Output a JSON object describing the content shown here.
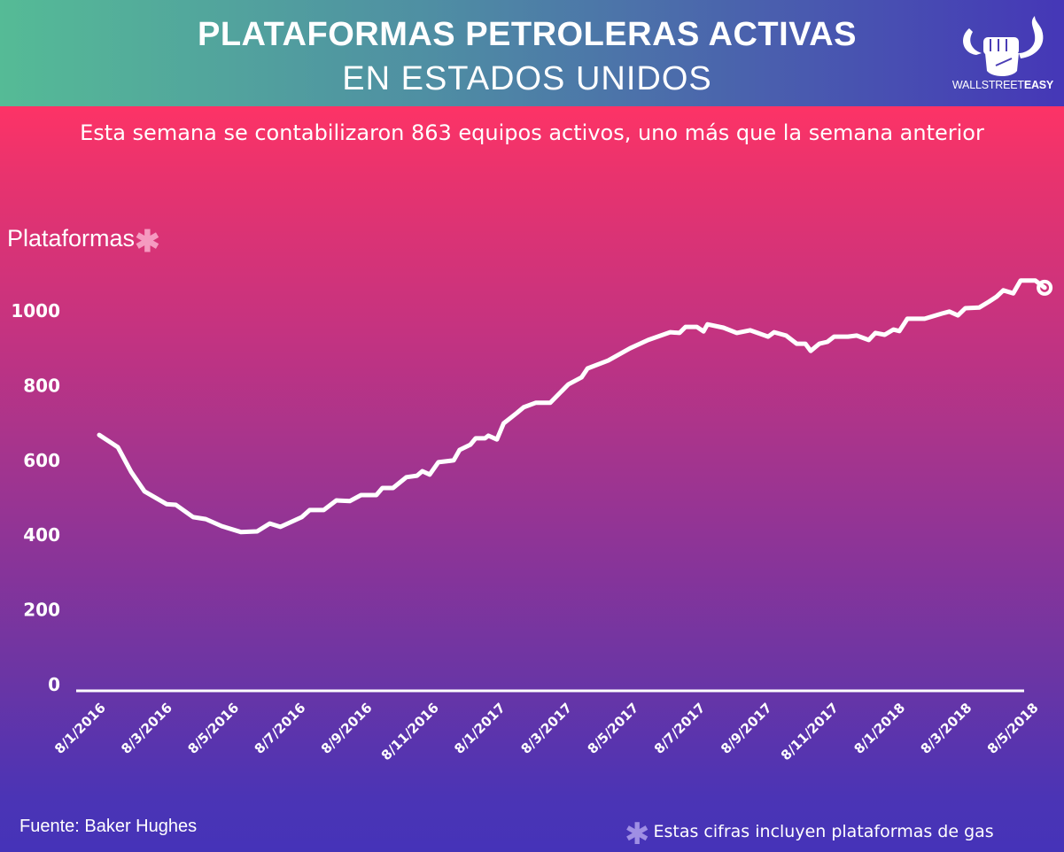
{
  "header": {
    "title_line1": "PLATAFORMAS PETROLERAS ACTIVAS",
    "title_line2": "EN ESTADOS UNIDOS",
    "logo_text_light": "WALLSTREET",
    "logo_text_bold": "EASY",
    "logo_icon": "bull-horns-fist-icon"
  },
  "subtitle": "Esta semana se contabilizaron 863 equipos activos, uno más que la semana anterior",
  "footer": {
    "source": "Fuente: Baker Hughes",
    "note_marker": "✱",
    "note": "Estas cifras incluyen plataformas de gas"
  },
  "colors": {
    "header_gradient_start": "#55bb96",
    "header_gradient_end": "#4537b7",
    "body_gradient_top": "#fd3366",
    "body_gradient_bottom": "#4533b8",
    "line": "#ffffff",
    "asterisk_pink": "#f59ac0",
    "asterisk_lavender": "#9f8fe4"
  },
  "chart_data": {
    "type": "line",
    "title": "PLATAFORMAS PETROLERAS ACTIVAS EN ESTADOS UNIDOS",
    "ylabel": "Plataformas",
    "ylabel_marker": "✱",
    "xlabel": "",
    "ylim": [
      0,
      1000
    ],
    "yticks": [
      0,
      200,
      400,
      600,
      800,
      1000
    ],
    "xticks": [
      "8/1/2016",
      "8/3/2016",
      "8/5/2016",
      "8/7/2016",
      "8/9/2016",
      "8/11/2016",
      "8/1/2017",
      "8/3/2017",
      "8/5/2017",
      "8/7/2017",
      "8/9/2017",
      "8/11/2017",
      "8/1/2018",
      "8/3/2018",
      "8/5/2018"
    ],
    "grid": false,
    "legend": "none",
    "end_marker": "hollow-circle",
    "series": [
      {
        "name": "Plataformas",
        "x_tick_index": [
          0.0,
          0.28,
          0.48,
          0.68,
          1.01,
          1.15,
          1.41,
          1.6,
          1.84,
          2.13,
          2.37,
          2.56,
          2.72,
          3.04,
          3.16,
          3.37,
          3.56,
          3.76,
          3.93,
          4.16,
          4.25,
          4.41,
          4.61,
          4.77,
          4.85,
          4.96,
          5.09,
          5.32,
          5.41,
          5.57,
          5.65,
          5.79,
          5.84,
          5.97,
          6.07,
          6.27,
          6.37,
          6.55,
          6.77,
          7.04,
          7.24,
          7.33,
          7.64,
          7.97,
          8.24,
          8.57,
          8.71,
          8.8,
          8.97,
          9.07,
          9.13,
          9.37,
          9.57,
          9.77,
          10.04,
          10.13,
          10.31,
          10.47,
          10.6,
          10.68,
          10.81,
          10.93,
          11.03,
          11.24,
          11.37,
          11.55,
          11.65,
          11.79,
          11.92,
          12.01,
          12.13,
          12.39,
          12.65,
          12.76,
          12.89,
          13.0,
          13.21,
          13.35,
          13.47,
          13.57,
          13.72,
          13.83,
          14.05,
          14.19
        ],
        "values": [
          668,
          635,
          569,
          517,
          483,
          481,
          448,
          443,
          424,
          408,
          410,
          431,
          422,
          448,
          467,
          467,
          493,
          491,
          507,
          507,
          526,
          526,
          555,
          559,
          571,
          562,
          595,
          600,
          628,
          642,
          659,
          659,
          666,
          656,
          699,
          727,
          742,
          754,
          754,
          803,
          822,
          846,
          867,
          900,
          922,
          943,
          941,
          957,
          957,
          945,
          964,
          955,
          941,
          948,
          931,
          943,
          934,
          912,
          912,
          893,
          912,
          917,
          931,
          931,
          934,
          922,
          941,
          936,
          950,
          946,
          979,
          979,
          993,
          998,
          988,
          1007,
          1009,
          1024,
          1038,
          1055,
          1047,
          1081,
          1081,
          1062
        ]
      }
    ]
  }
}
